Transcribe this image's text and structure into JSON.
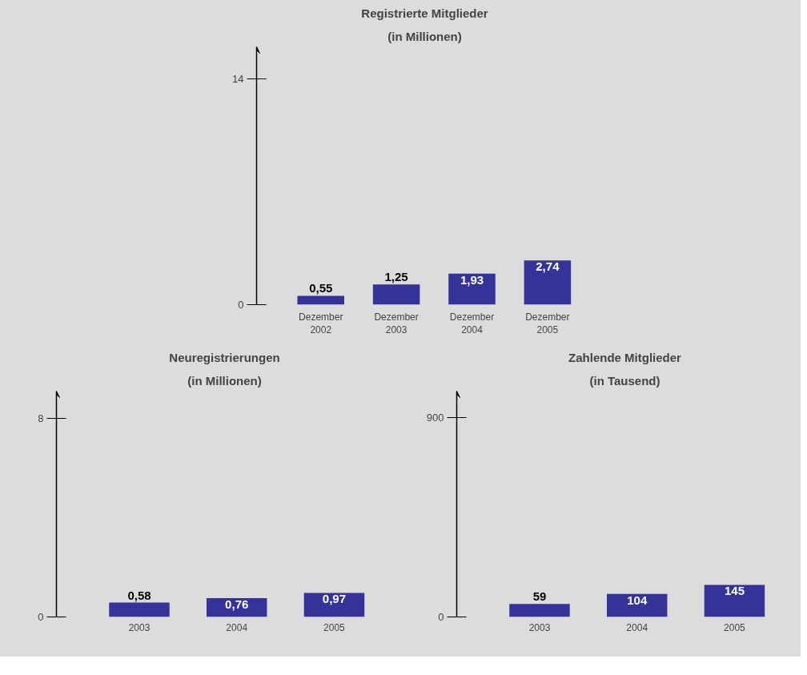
{
  "chart_data": [
    {
      "type": "bar",
      "title": "Registrierte Mitglieder",
      "subtitle": "(in Millionen)",
      "categories": [
        "Dezember\n2002",
        "Dezember\n2003",
        "Dezember\n2004",
        "Dezember\n2005"
      ],
      "values": [
        0.55,
        1.25,
        1.93,
        2.74
      ],
      "value_labels": [
        "0,55",
        "1,25",
        "1,93",
        "2,74"
      ],
      "color": "#333399",
      "ylim": [
        0,
        16
      ],
      "yticks": [
        0,
        14
      ],
      "grid": false
    },
    {
      "type": "bar",
      "title": "Neuregistrierungen",
      "subtitle": "(in Millionen)",
      "categories": [
        "2003",
        "2004",
        "2005"
      ],
      "values": [
        0.58,
        0.76,
        0.97
      ],
      "value_labels": [
        "0,58",
        "0,76",
        "0,97"
      ],
      "color": "#333399",
      "ylim": [
        0,
        9.1
      ],
      "yticks": [
        0,
        8
      ],
      "grid": false
    },
    {
      "type": "bar",
      "title": "Zahlende Mitglieder",
      "subtitle": "(in Tausend)",
      "categories": [
        "2003",
        "2004",
        "2005"
      ],
      "values": [
        59,
        104,
        145
      ],
      "value_labels": [
        "59",
        "104",
        "145"
      ],
      "color": "#333399",
      "ylim": [
        0,
        1020
      ],
      "yticks": [
        0,
        900
      ],
      "grid": false
    }
  ]
}
